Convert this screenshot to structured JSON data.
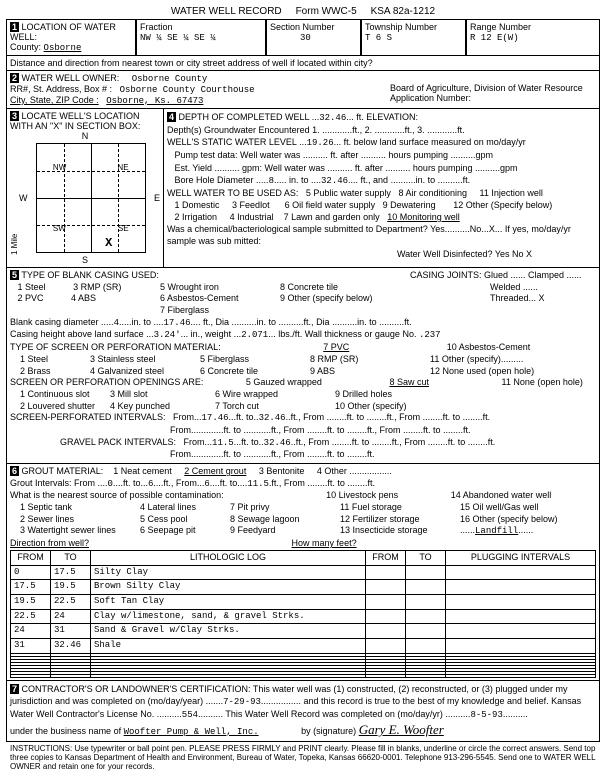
{
  "form": {
    "title": "WATER WELL RECORD",
    "formno": "Form WWC-5",
    "ksa": "KSA 82a-1212"
  },
  "sec1": {
    "heading": "LOCATION OF WATER WELL:",
    "county_lbl": "County:",
    "county": "Osborne",
    "fraction_lbl": "Fraction",
    "fraction": "NW ¼ SE ¼ SE ¼",
    "section_lbl": "Section Number",
    "section": "30",
    "township_lbl": "Township Number",
    "township": "T 6 S",
    "range_lbl": "Range Number",
    "range": "R 12 E(W)",
    "dist": "Distance and direction from nearest town or city street address of well if located within city?"
  },
  "sec2": {
    "heading": "WATER WELL OWNER:",
    "owner": "Osborne County",
    "addr_lbl": "RR#, St. Address, Box #  :",
    "addr": "Osborne County Courthouse",
    "city_lbl": "City, State, ZIP Code        :",
    "city": "Osborne, Ks. 67473",
    "board": "Board of Agriculture, Division of Water Resource",
    "appno": "Application Number:"
  },
  "sec3": {
    "heading": "LOCATE WELL'S LOCATION WITH AN \"X\" IN SECTION BOX:",
    "n": "N",
    "nw": "NW",
    "ne": "NE",
    "w": "W",
    "e": "E",
    "sw": "SW",
    "se": "SE",
    "s": "S",
    "x": "X",
    "mile": "1 Mile"
  },
  "sec4": {
    "heading": "DEPTH OF COMPLETED WELL",
    "depth": "32.46",
    "unit": "ft. ELEVATION:",
    "l1": "Depth(s) Groundwater Encountered   1. ............ft., 2. ............ft., 3. ............ft.",
    "l2a": "WELL'S STATIC WATER LEVEL",
    "static": "19.26",
    "l2b": "ft. below land surface measured on mo/day/yr",
    "l3": "Pump test data:  Well water was .......... ft. after .......... hours pumping ..........gpm",
    "l4": "Est. Yield .......... gpm:  Well water was .......... ft. after .......... hours pumping ..........gpm",
    "l5a": "Bore Hole Diameter",
    "bh1": "8",
    "l5b": "in. to",
    "bh2": "32.46",
    "l5c": "ft., and ..........in. to ..........ft.",
    "use_lbl": "WELL WATER TO BE USED AS:",
    "u1": "1 Domestic",
    "u2": "2 Irrigation",
    "u3": "3 Feedlot",
    "u4": "4 Industrial",
    "u5": "5 Public water supply",
    "u6": "6 Oil field water supply",
    "u7": "7 Lawn and garden only",
    "u8": "8 Air conditioning",
    "u9": "9 Dewatering",
    "u10": "10 Monitoring well",
    "u10v": "well",
    "u11": "11 Injection well",
    "u12": "12 Other (Specify below)",
    "chem": "Was a chemical/bacteriological sample submitted to Department? Yes..........No...X... If yes, mo/day/yr sample was sub mitted:",
    "disinf": "Water Well Disinfected?   Yes            No   X"
  },
  "sec5": {
    "heading": "TYPE OF BLANK CASING USED:",
    "c1": "1 Steel",
    "c2": "2 PVC",
    "c3": "3 RMP (SR)",
    "c4": "4 ABS",
    "c5": "5 Wrought iron",
    "c6": "6 Asbestos-Cement",
    "c7": "7 Fiberglass",
    "c8": "8 Concrete tile",
    "c9": "9 Other (specify below)",
    "joints": "CASING JOINTS: Glued ...... Clamped ......",
    "welded": "Welded ......",
    "threaded": "Threaded... X",
    "bcd": "Blank casing diameter",
    "bcd1": "4",
    "bcd2": "17.46",
    "bcdrest": "ft., Dia ..........in. to ..........ft., Dia ..........in. to ..........ft.",
    "hgt": "Casing height above land surface",
    "hgtv": "3.24'",
    "wt": "in., weight",
    "wtv": "2.071",
    "wtu": "lbs./ft. Wall thickness or gauge No.",
    "gauge": ".237",
    "screen_lbl": "TYPE OF SCREEN OR PERFORATION MATERIAL:",
    "s1": "1 Steel",
    "s2": "2 Brass",
    "s3": "3 Stainless steel",
    "s4": "4 Galvanized steel",
    "s5": "5 Fiberglass",
    "s6": "6 Concrete tile",
    "s7": "7 PVC",
    "s8": "8 RMP (SR)",
    "s9": "9 ABS",
    "s10": "10 Asbestos-Cement",
    "s11": "11 Other (specify).........",
    "s12": "12 None used (open hole)",
    "open_lbl": "SCREEN OR PERFORATION OPENINGS ARE:",
    "o1": "1 Continuous slot",
    "o2": "2 Louvered shutter",
    "o3": "3 Mill slot",
    "o4": "4 Key punched",
    "o5": "5 Gauzed wrapped",
    "o6": "6 Wire wrapped",
    "o7": "7 Torch cut",
    "o8": "8 Saw cut",
    "o9": "9 Drilled holes",
    "o10": "10 Other (specify)",
    "o11": "11 None (open hole)",
    "sp_lbl": "SCREEN-PERFORATED INTERVALS:",
    "sp_from": "17.46",
    "sp_to": "32.46",
    "gp_lbl": "GRAVEL PACK INTERVALS:",
    "gp_from": "11.5",
    "gp_to": "32.46",
    "from": "From",
    "to": "ft. to",
    "ftfrom": "ft., From",
    "fto": "ft. to",
    "ft": "ft."
  },
  "sec6": {
    "heading": "GROUT MATERIAL:",
    "g1": "1 Neat cement",
    "g2": "2 Cement grout",
    "g3": "3 Bentonite",
    "g4": "4 Other",
    "gi": "Grout Intervals:   From",
    "gi_f": "0",
    "gi_t": "6",
    "gi2_f": "6",
    "gi2_t": "11.5",
    "contam": "What is the nearest source of possible contamination:",
    "p1": "1 Septic tank",
    "p2": "2 Sewer lines",
    "p3": "3 Watertight sewer lines",
    "p4": "4 Lateral lines",
    "p5": "5 Cess pool",
    "p6": "6 Seepage pit",
    "p7": "7 Pit privy",
    "p8": "8 Sewage lagoon",
    "p9": "9 Feedyard",
    "p10": "10 Livestock pens",
    "p11": "11 Fuel storage",
    "p12": "12 Fertilizer storage",
    "p13": "13 Insecticide storage",
    "p14": "14 Abandoned water well",
    "p15": "15 Oil well/Gas well",
    "p16": "16 Other (specify below)",
    "p16v": "Landfill",
    "dir": "Direction from well?",
    "howmany": "How many feet?",
    "log_from": "FROM",
    "log_to": "TO",
    "log_lith": "LITHOLOGIC LOG",
    "log_plug": "PLUGGING INTERVALS",
    "rows": [
      {
        "f": "0",
        "t": "17.5",
        "d": "Silty Clay"
      },
      {
        "f": "17.5",
        "t": "19.5",
        "d": "Brown Silty Clay"
      },
      {
        "f": "19.5",
        "t": "22.5",
        "d": "Soft Tan Clay"
      },
      {
        "f": "22.5",
        "t": "24",
        "d": "Clay w/limestone, sand, & gravel Strks."
      },
      {
        "f": "24",
        "t": "31",
        "d": "Sand & Gravel w/Clay Strks."
      },
      {
        "f": "31",
        "t": "32.46",
        "d": "Shale"
      }
    ]
  },
  "sec7": {
    "heading": "CONTRACTOR'S OR LANDOWNER'S CERTIFICATION: This water well was (1) constructed, (2) reconstructed, or (3) plugged under my jurisdiction and was completed on (mo/day/year)",
    "date1": "7-29-93",
    "cert2": "and this record is true to the best of my knowledge and belief. Kansas",
    "lic": "Water Well Contractor's License No.",
    "licno": "554",
    "comp": "This Water Well Record was completed on (mo/day/yr)",
    "date2": "8-5-93",
    "bus": "under the business name of",
    "busname": "Woofter Pump & Well, Inc.",
    "by": "by (signature)",
    "sig": "Gary E. Woofter"
  },
  "instr": "INSTRUCTIONS: Use typewriter or ball point pen. PLEASE PRESS FIRMLY and PRINT clearly. Please fill in blanks, underline or circle the correct answers. Send top three copies to Kansas Department of Health and Environment, Bureau of Water, Topeka, Kansas 66620-0001. Telephone 913-296-5545. Send one to WATER WELL OWNER and retain one for your records."
}
